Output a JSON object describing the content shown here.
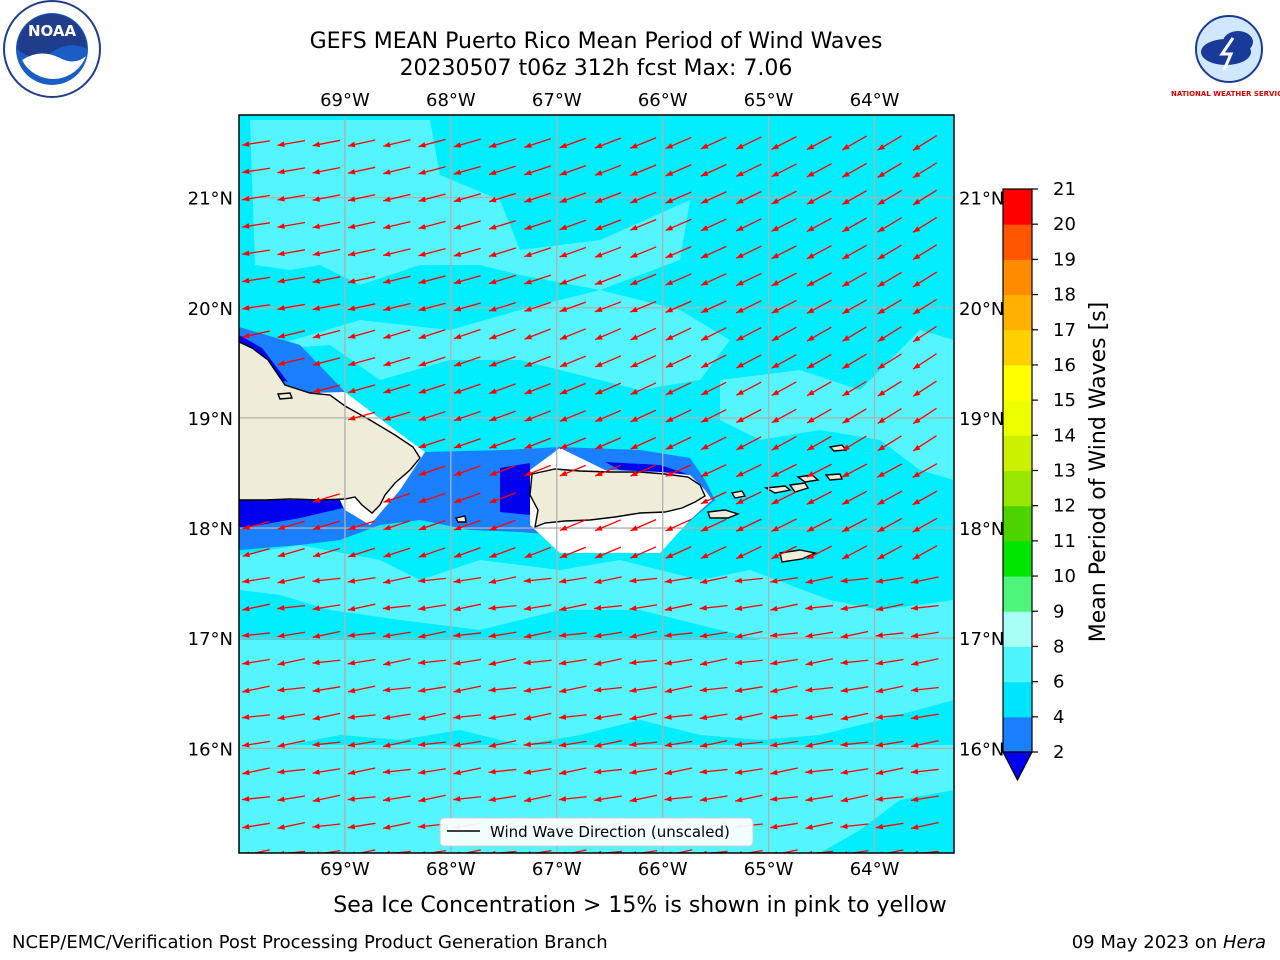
{
  "title": {
    "line1": "GEFS MEAN Puerto Rico Mean Period of Wind Waves",
    "line2": "20230507 t06z 312h fcst   Max: 7.06"
  },
  "axes": {
    "lon_labels": [
      "69°W",
      "68°W",
      "67°W",
      "66°W",
      "65°W",
      "64°W"
    ],
    "lat_labels": [
      "21°N",
      "20°N",
      "19°N",
      "18°N",
      "17°N",
      "16°N"
    ],
    "lon_values": [
      -69,
      -68,
      -67,
      -66,
      -65,
      -64
    ],
    "lat_values": [
      21,
      20,
      19,
      18,
      17,
      16
    ],
    "lon_range": [
      -70,
      -63.25
    ],
    "lat_range": [
      15.05,
      21.75
    ]
  },
  "legend": {
    "label": "Wind Wave Direction (unscaled)"
  },
  "colorbar": {
    "label": "Mean Period of Wind Waves [s]",
    "ticks": [
      "2",
      "4",
      "6",
      "8",
      "9",
      "10",
      "11",
      "12",
      "13",
      "14",
      "15",
      "16",
      "17",
      "18",
      "19",
      "20",
      "21"
    ],
    "colors": [
      "#1a80ff",
      "#00e5ff",
      "#4df5ff",
      "#a8fff5",
      "#4df57a",
      "#00e600",
      "#4dd400",
      "#99e600",
      "#ccf000",
      "#eeff00",
      "#ffff00",
      "#ffd000",
      "#ffb000",
      "#ff8c00",
      "#ff5500",
      "#ff2600"
    ],
    "under_color": "#0000ee",
    "top_color": "#ff0000"
  },
  "logos": {
    "noaa": "NOAA",
    "nws": "NATIONAL WEATHER SERVICE"
  },
  "caption": "Sea Ice Concentration > 15% is shown in pink to yellow",
  "footer": {
    "left": "NCEP/EMC/Verification Post Processing Product Generation Branch",
    "right_prefix": "09 May 2023 on ",
    "right_host": "Hera"
  },
  "map_colors": {
    "ocean_main": "#00eeff",
    "ocean_light": "#55f5ff",
    "shallow": "#1a80ff",
    "deep": "#0000ee",
    "land": "#efedda",
    "arrow": "#ff0000",
    "grid": "#b0b0b0"
  }
}
